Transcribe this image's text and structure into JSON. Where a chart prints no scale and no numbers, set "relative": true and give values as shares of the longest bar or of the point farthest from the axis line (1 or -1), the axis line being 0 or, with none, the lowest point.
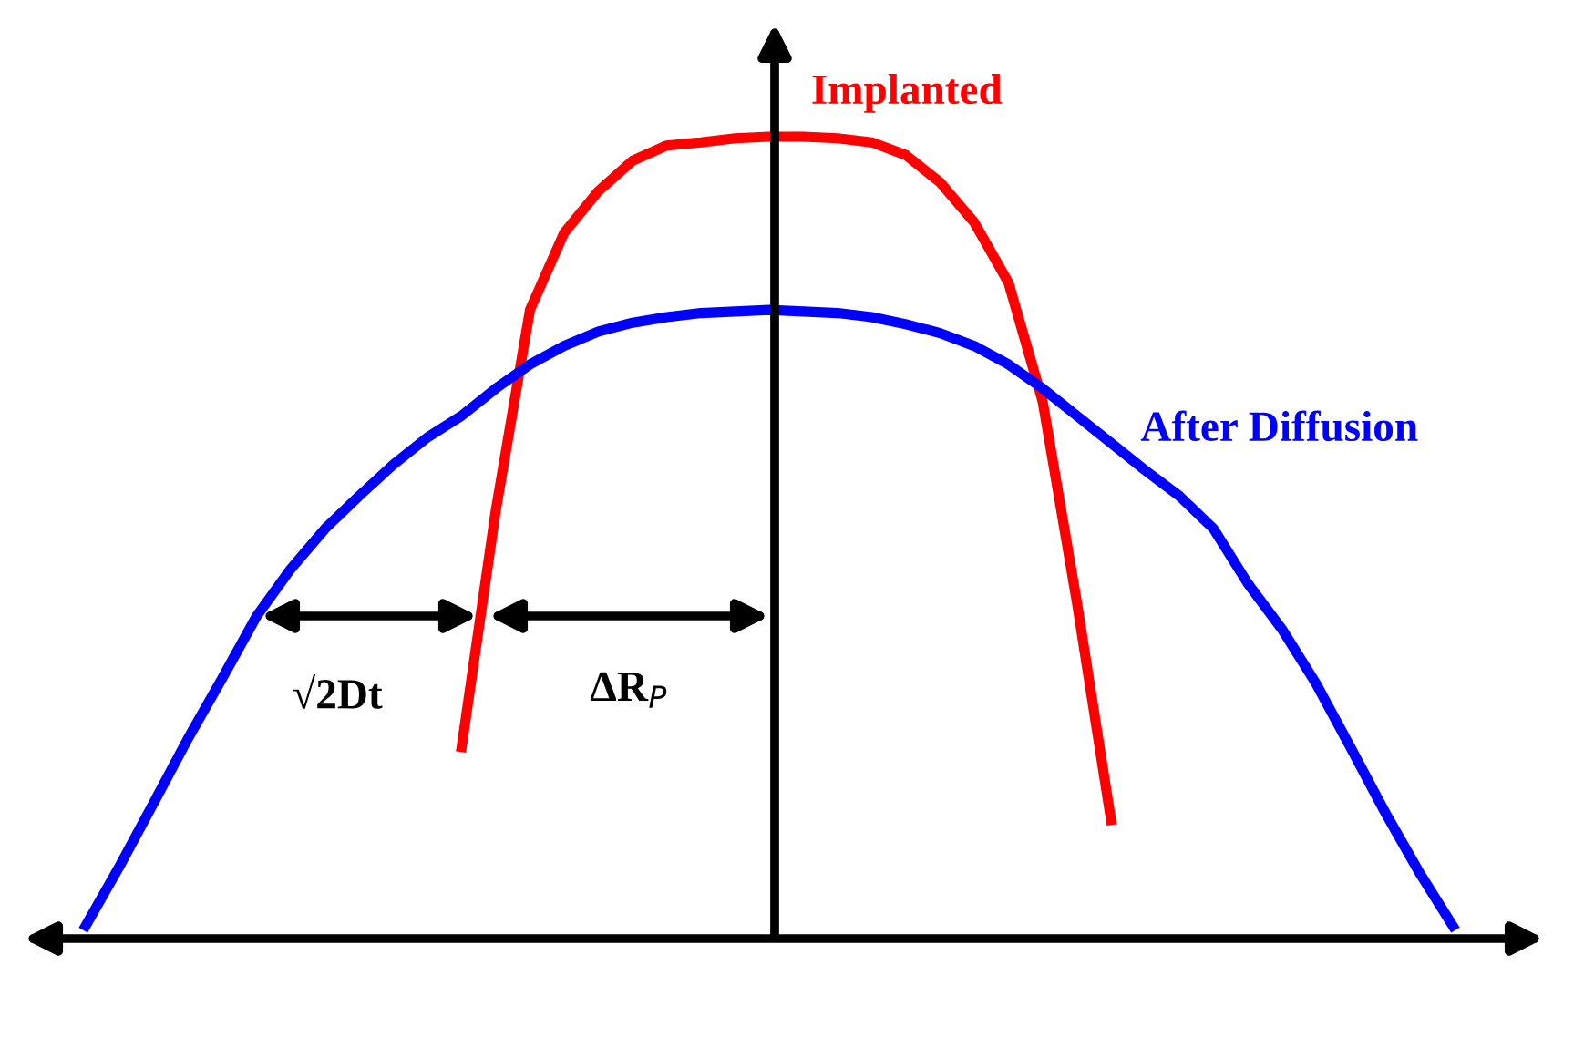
{
  "chart_data": {
    "type": "line",
    "relative": true,
    "categories": [
      null,
      null,
      null,
      null,
      null,
      null,
      null,
      null,
      null,
      null,
      null,
      null,
      null,
      null,
      null,
      null,
      null,
      null,
      null,
      null,
      null,
      null,
      null,
      null,
      null,
      null,
      null,
      null,
      null,
      null,
      null,
      null,
      null,
      null,
      null,
      null,
      null,
      null,
      null,
      null,
      null
    ],
    "series": [
      {
        "name": "Implanted",
        "color": "#ff0000",
        "values": [
          null,
          null,
          null,
          null,
          null,
          null,
          null,
          null,
          null,
          null,
          null,
          0.239,
          0.534,
          0.784,
          0.88,
          0.932,
          0.97,
          0.989,
          0.993,
          0.998,
          1,
          1,
          0.998,
          0.993,
          0.977,
          0.943,
          0.893,
          0.818,
          0.67,
          0.42,
          0.148,
          null,
          null,
          null,
          null,
          null,
          null,
          null,
          null,
          null,
          null
        ]
      },
      {
        "name": "After Diffusion",
        "color": "#0000ff",
        "values": [
          0.016,
          0.091,
          0.17,
          0.25,
          0.325,
          0.402,
          0.461,
          0.511,
          0.552,
          0.591,
          0.625,
          0.652,
          0.686,
          0.716,
          0.739,
          0.757,
          0.768,
          0.775,
          0.78,
          0.782,
          0.784,
          0.782,
          0.78,
          0.775,
          0.766,
          0.755,
          0.739,
          0.716,
          0.686,
          0.652,
          0.618,
          0.584,
          0.552,
          0.511,
          0.443,
          0.386,
          0.318,
          0.239,
          0.159,
          0.084,
          0.016
        ]
      }
    ],
    "annotations": [
      "√2Dt",
      "ΔR$_{P}$"
    ],
    "grid": false,
    "legend": false,
    "line_style": "solid",
    "marker": "none"
  }
}
